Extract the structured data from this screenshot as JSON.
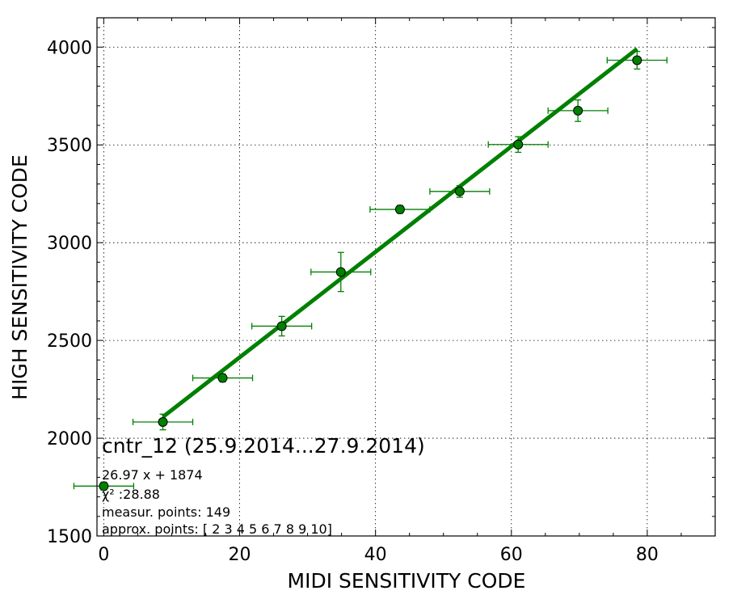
{
  "chart_data": {
    "type": "scatter",
    "xlabel": "MIDI SENSITIVITY CODE",
    "ylabel": "HIGH SENSITIVITY CODE",
    "xlim": [
      -1,
      90
    ],
    "ylim": [
      1500,
      4150
    ],
    "x_ticks": [
      0,
      20,
      40,
      60,
      80
    ],
    "y_ticks": [
      1500,
      2000,
      2500,
      3000,
      3500,
      4000
    ],
    "x_minor_step": 5,
    "y_minor_step": 100,
    "grid": true,
    "color": "#008000",
    "series": [
      {
        "points": [
          {
            "x": 0.0,
            "y": 1755,
            "xerr": 4.4,
            "yerr": 20
          },
          {
            "x": 8.7,
            "y": 2083,
            "xerr": 4.4,
            "yerr": 40
          },
          {
            "x": 17.5,
            "y": 2308,
            "xerr": 4.4,
            "yerr": 20
          },
          {
            "x": 26.2,
            "y": 2573,
            "xerr": 4.4,
            "yerr": 50
          },
          {
            "x": 34.9,
            "y": 2850,
            "xerr": 4.4,
            "yerr": 100
          },
          {
            "x": 43.6,
            "y": 3170,
            "xerr": 4.4,
            "yerr": 20
          },
          {
            "x": 52.4,
            "y": 3262,
            "xerr": 4.4,
            "yerr": 30
          },
          {
            "x": 61.0,
            "y": 3502,
            "xerr": 4.4,
            "yerr": 40
          },
          {
            "x": 69.8,
            "y": 3675,
            "xerr": 4.4,
            "yerr": 55
          },
          {
            "x": 78.5,
            "y": 3933,
            "xerr": 4.4,
            "yerr": 45
          }
        ]
      }
    ],
    "fit": {
      "slope": 26.97,
      "intercept": 1874,
      "x_range": [
        8.7,
        78.5
      ]
    },
    "annotations": {
      "title": "cntr_12 (25.9.2014...27.9.2014)",
      "equation": "26.97 x + 1874",
      "chi2": "χ² :28.88",
      "measur_points": "measur. points: 149",
      "approx_points": "approx. points: [ 2  3  4  5  6  7  8  9 10]"
    }
  }
}
